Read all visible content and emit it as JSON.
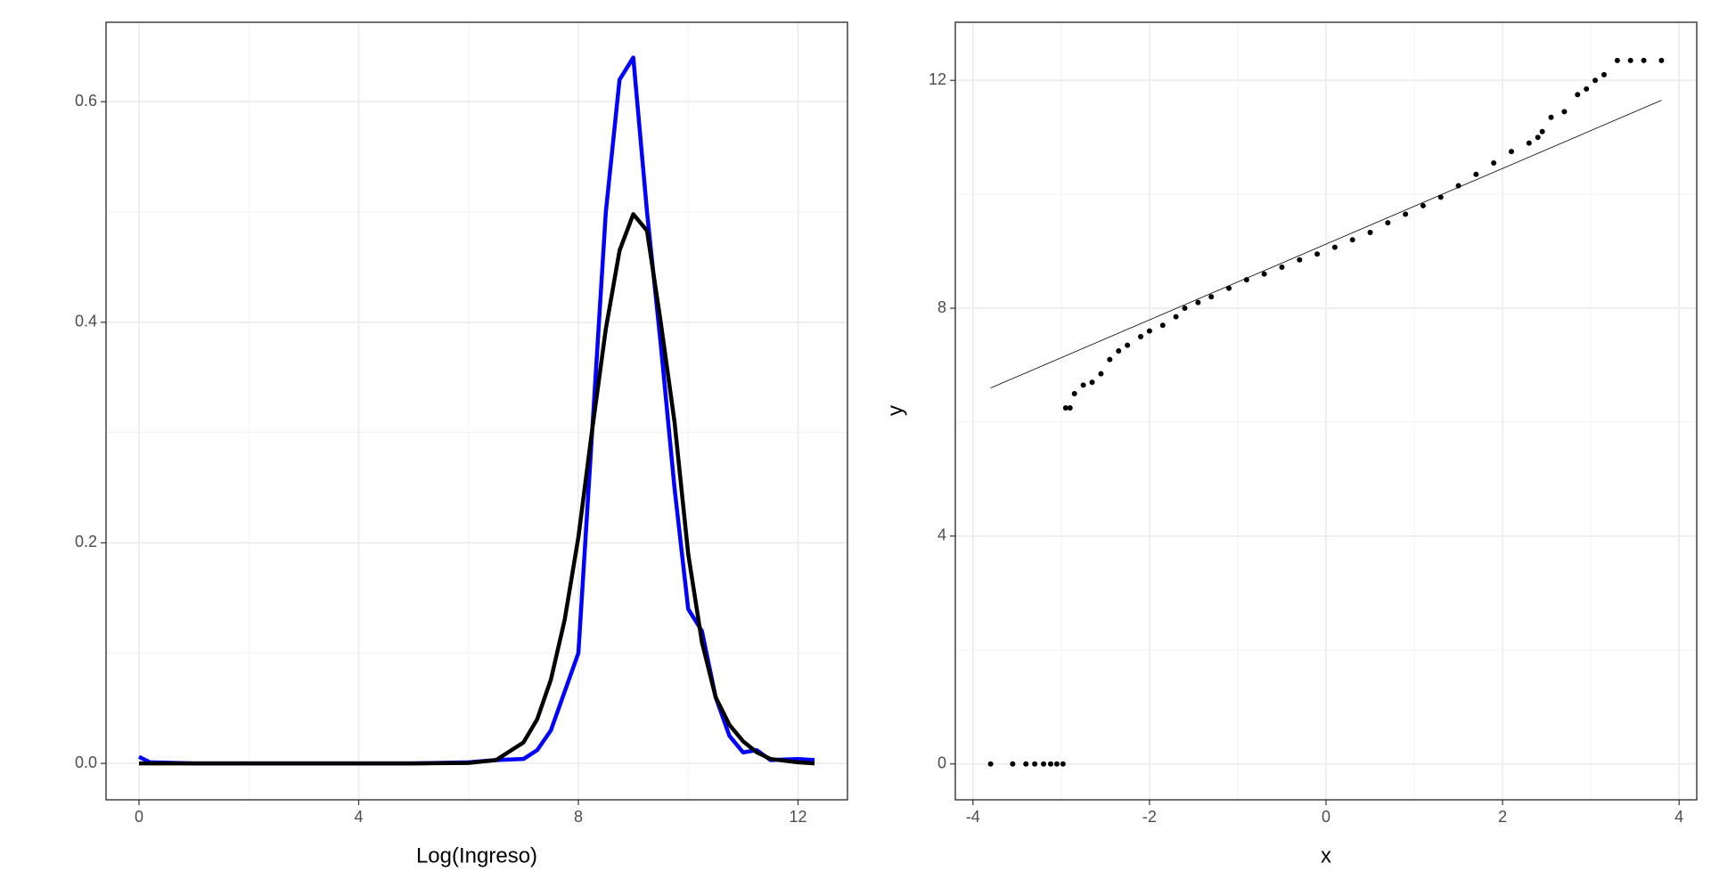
{
  "chart_data": [
    {
      "type": "line",
      "x_label": "Log(Ingreso)",
      "x": [
        0,
        0.2,
        1,
        2,
        3,
        4,
        5,
        6,
        6.5,
        7,
        7.25,
        7.5,
        7.75,
        8,
        8.25,
        8.5,
        8.75,
        9,
        9.25,
        9.5,
        9.75,
        10,
        10.25,
        10.5,
        10.75,
        11,
        11.25,
        11.5,
        12,
        12.3
      ],
      "series": [
        {
          "color": "#0000ff",
          "values": [
            0.006,
            0.001,
            0,
            0,
            0,
            0,
            0,
            0.001,
            0.003,
            0.004,
            0.012,
            0.03,
            0.065,
            0.1,
            0.3,
            0.5,
            0.62,
            0.64,
            0.5,
            0.38,
            0.25,
            0.14,
            0.12,
            0.06,
            0.025,
            0.01,
            0.012,
            0.003,
            0.004,
            0.003
          ]
        },
        {
          "color": "#000000",
          "values": [
            0,
            0,
            0,
            0,
            0,
            0,
            0,
            0.0004,
            0.003,
            0.019,
            0.04,
            0.076,
            0.13,
            0.205,
            0.302,
            0.394,
            0.465,
            0.498,
            0.483,
            0.4,
            0.31,
            0.19,
            0.11,
            0.06,
            0.035,
            0.02,
            0.01,
            0.004,
            0.001,
            0
          ]
        }
      ],
      "xlim": [
        -0.6,
        12.9
      ],
      "ylim": [
        -0.033,
        0.672
      ],
      "xticks": [
        0,
        4,
        8,
        12
      ],
      "yticks": [
        {
          "value": 0,
          "label": "0.0"
        },
        0.2,
        0.4,
        0.6
      ],
      "grid": true
    },
    {
      "type": "scatter",
      "x_label": "x",
      "y_label": "y",
      "color": "#000000",
      "x": [
        -3.8,
        -3.55,
        -3.4,
        -3.3,
        -3.2,
        -3.12,
        -3.05,
        -2.98,
        -2.95,
        -2.9,
        -2.85,
        -2.75,
        -2.65,
        -2.55,
        -2.45,
        -2.35,
        -2.25,
        -2.1,
        -2.0,
        -1.85,
        -1.7,
        -1.6,
        -1.45,
        -1.3,
        -1.1,
        -0.9,
        -0.7,
        -0.5,
        -0.3,
        -0.1,
        0.1,
        0.3,
        0.5,
        0.7,
        0.9,
        1.1,
        1.3,
        1.5,
        1.7,
        1.9,
        2.1,
        2.3,
        2.4,
        2.45,
        2.55,
        2.7,
        2.85,
        2.95,
        3.05,
        3.15,
        3.3,
        3.45,
        3.6,
        3.8
      ],
      "values": [
        0,
        0,
        0,
        0,
        0,
        0,
        0,
        0,
        6.25,
        6.25,
        6.5,
        6.65,
        6.7,
        6.85,
        7.1,
        7.25,
        7.35,
        7.5,
        7.6,
        7.7,
        7.85,
        8.0,
        8.1,
        8.2,
        8.35,
        8.5,
        8.6,
        8.72,
        8.85,
        8.95,
        9.07,
        9.2,
        9.33,
        9.5,
        9.65,
        9.8,
        9.95,
        10.15,
        10.35,
        10.55,
        10.75,
        10.9,
        11.0,
        11.1,
        11.35,
        11.45,
        11.75,
        11.85,
        12.0,
        12.1,
        12.35,
        12.35,
        12.35,
        12.35
      ],
      "reference_line": {
        "x": [
          -3.8,
          3.8
        ],
        "values": [
          6.6,
          11.65
        ]
      },
      "xlim": [
        -4.2,
        4.2
      ],
      "ylim": [
        -0.63,
        13.02
      ],
      "xticks": [
        -4,
        -2,
        0,
        2,
        4
      ],
      "yticks": [
        0,
        4,
        8,
        12
      ],
      "grid": true
    }
  ]
}
